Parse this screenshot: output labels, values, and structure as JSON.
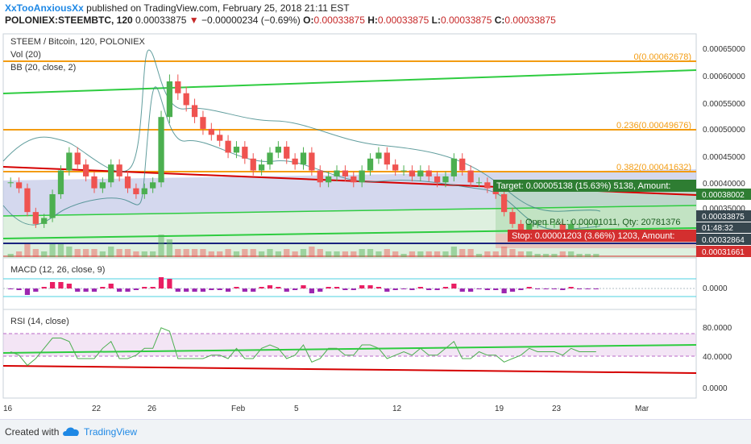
{
  "header": {
    "author": "XxTooAnxiousXx",
    "published": "published on TradingView.com, February 25, 2018 21:11 EST",
    "symbol": "POLONIEX:STEEMBTC, 120",
    "last": "0.00033875",
    "arrow": "▼",
    "change": "−0.00000234 (−0.69%)",
    "o_label": "O:",
    "o": "0.00033875",
    "h_label": "H:",
    "h": "0.00033875",
    "l_label": "L:",
    "l": "0.00033875",
    "c_label": "C:",
    "c": "0.00033875"
  },
  "legend": {
    "title": "STEEM / Bitcoin, 120, POLONIEX",
    "vol": "Vol (20)",
    "bb": "BB (20, close, 2)",
    "macd": "MACD (12, 26, close, 9)",
    "rsi": "RSI (14, close)"
  },
  "price_axis": [
    "0.00065000",
    "0.00060000",
    "0.00055000",
    "0.00050000",
    "0.00045000",
    "0.00040000",
    "0.00035000"
  ],
  "macd_axis": [
    "0.0000"
  ],
  "rsi_axis": [
    "80.0000",
    "40.0000",
    "0.0000"
  ],
  "x_ticks": [
    "16",
    "22",
    "26",
    "Feb",
    "5",
    "12",
    "19",
    "23",
    "Mar"
  ],
  "fib": [
    {
      "label": "0(0.00062678)",
      "color": "#f39c12"
    },
    {
      "label": "0.236(0.00049676)",
      "color": "#f39c12"
    },
    {
      "label": "0.382(0.00041632)",
      "color": "#f39c12"
    }
  ],
  "price_tags": [
    {
      "label": "0.00038002",
      "color": "#2e7d32"
    },
    {
      "label": "0.00033875",
      "color": "#37474f"
    },
    {
      "label": "01:48:32",
      "color": "#37474f"
    },
    {
      "label": "0.00032864",
      "color": "#37474f"
    },
    {
      "label": "0.00031661",
      "color": "#d32f2f"
    }
  ],
  "position": {
    "target": "Target: 0.00005138 (15.63%) 5138, Amount:",
    "open": "Open P&L: 0.00001011, Qty: 20781376",
    "stop": "Stop: 0.00001203 (3.66%) 1203, Amount:"
  },
  "footer": {
    "created": "Created with",
    "brand": "TradingView"
  },
  "colors": {
    "up": "#4caf50",
    "down": "#ef5350",
    "fib": "#f39c12",
    "trend_green": "#2ecc40",
    "trend_red": "#d50000",
    "navy": "#1a237e"
  },
  "chart_data": {
    "type": "candlestick",
    "title": "STEEM / Bitcoin, 120, POLONIEX",
    "ylim": [
      0.00031,
      0.00066
    ],
    "close_series": [
      0.00041,
      0.0004,
      0.00036,
      0.00034,
      0.00035,
      0.00039,
      0.00043,
      0.00046,
      0.00044,
      0.00042,
      0.0004,
      0.00041,
      0.00044,
      0.00042,
      0.0004,
      0.00039,
      0.0004,
      0.00041,
      0.00052,
      0.00058,
      0.00056,
      0.00054,
      0.00052,
      0.0005,
      0.00049,
      0.00048,
      0.00046,
      0.00047,
      0.00045,
      0.00043,
      0.00044,
      0.00046,
      0.00047,
      0.00045,
      0.00044,
      0.00046,
      0.00043,
      0.00041,
      0.00042,
      0.00043,
      0.00042,
      0.00041,
      0.00043,
      0.00045,
      0.00046,
      0.00044,
      0.00043,
      0.00043,
      0.00042,
      0.00043,
      0.00042,
      0.00041,
      0.00042,
      0.00045,
      0.00043,
      0.00041,
      0.00041,
      0.0004,
      0.00039,
      0.00036,
      0.00034,
      0.00033,
      0.00034,
      0.00034,
      0.00034,
      0.00034,
      0.00033,
      0.00034,
      0.00034,
      0.00034,
      0.00034
    ]
  }
}
